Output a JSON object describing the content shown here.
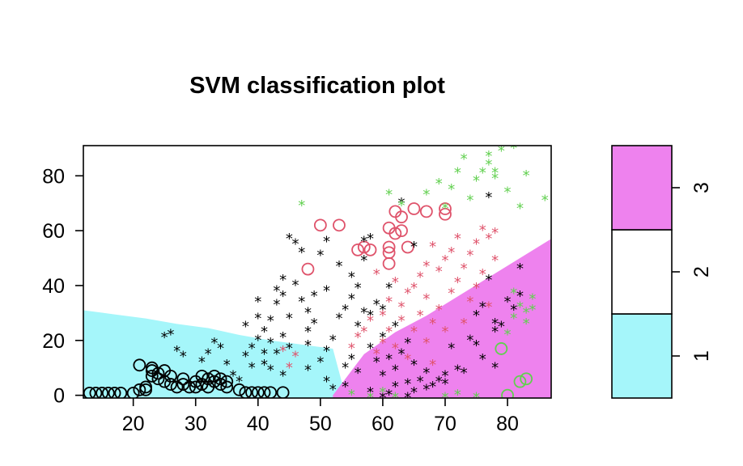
{
  "chart_data": {
    "type": "scatter",
    "title": "SVM classification plot",
    "xlabel": "",
    "ylabel": "",
    "xlim": [
      12,
      87
    ],
    "ylim": [
      -1,
      91
    ],
    "x_ticks": [
      20,
      30,
      40,
      50,
      60,
      70,
      80
    ],
    "y_ticks": [
      0,
      20,
      40,
      60,
      80
    ],
    "grid": false,
    "legend": {
      "type": "colorbar",
      "placement": "right",
      "levels": [
        {
          "label": "1",
          "color": "#a5f6fa"
        },
        {
          "label": "2",
          "color": "#ffffff"
        },
        {
          "label": "3",
          "color": "#ee82ee"
        }
      ]
    },
    "regions": {
      "class1_upper_boundary": {
        "x": [
          12,
          17,
          22,
          27,
          32,
          37,
          42,
          47,
          52,
          54
        ],
        "y": [
          31,
          29.5,
          28,
          26,
          24.5,
          22,
          20,
          18.5,
          17,
          0
        ]
      },
      "class3_lower_boundary": {
        "x": [
          52,
          57,
          62,
          67,
          72,
          77,
          82,
          87
        ],
        "y": [
          0,
          15,
          23,
          29,
          36,
          43,
          50,
          57
        ]
      }
    },
    "series": [
      {
        "marker": "circle",
        "color": "#000000",
        "points": [
          [
            13,
            0.8
          ],
          [
            14,
            0.8
          ],
          [
            15,
            0.8
          ],
          [
            16,
            0.8
          ],
          [
            17,
            0.8
          ],
          [
            18,
            0.8
          ],
          [
            20,
            0.8
          ],
          [
            21,
            2
          ],
          [
            21,
            11
          ],
          [
            22,
            3
          ],
          [
            22,
            2
          ],
          [
            23,
            9
          ],
          [
            23,
            10
          ],
          [
            23,
            7
          ],
          [
            24,
            6
          ],
          [
            24,
            8
          ],
          [
            25,
            5
          ],
          [
            25,
            9
          ],
          [
            26,
            4
          ],
          [
            26,
            7
          ],
          [
            27,
            3
          ],
          [
            28,
            4
          ],
          [
            28,
            6
          ],
          [
            29,
            3
          ],
          [
            30,
            3
          ],
          [
            30,
            5
          ],
          [
            31,
            7
          ],
          [
            31,
            4
          ],
          [
            32,
            3
          ],
          [
            32,
            6
          ],
          [
            33,
            5
          ],
          [
            33,
            7
          ],
          [
            34,
            6
          ],
          [
            34,
            4
          ],
          [
            35,
            3
          ],
          [
            35,
            5
          ],
          [
            37,
            2
          ],
          [
            38,
            1
          ],
          [
            39,
            1
          ],
          [
            40,
            1
          ],
          [
            41,
            1
          ],
          [
            42,
            1
          ],
          [
            44,
            1
          ]
        ]
      },
      {
        "marker": "circle",
        "color": "#df536b",
        "points": [
          [
            48,
            46
          ],
          [
            50,
            62
          ],
          [
            53,
            62
          ],
          [
            56,
            53
          ],
          [
            57,
            54
          ],
          [
            58,
            53
          ],
          [
            61,
            61
          ],
          [
            61,
            54
          ],
          [
            61,
            52
          ],
          [
            61,
            48
          ],
          [
            62,
            67
          ],
          [
            62,
            59
          ],
          [
            63,
            65
          ],
          [
            63,
            60
          ],
          [
            64,
            54
          ],
          [
            65,
            68
          ],
          [
            67,
            67
          ],
          [
            70,
            66
          ],
          [
            70,
            68
          ]
        ]
      },
      {
        "marker": "circle",
        "color": "#61d04f",
        "points": [
          [
            79,
            17
          ],
          [
            80,
            0
          ],
          [
            82,
            5
          ],
          [
            83,
            6
          ]
        ]
      },
      {
        "marker": "star",
        "color": "#000000",
        "points": [
          [
            25,
            22
          ],
          [
            26,
            23
          ],
          [
            27,
            17
          ],
          [
            28,
            15
          ],
          [
            31,
            13
          ],
          [
            32,
            16
          ],
          [
            33,
            20
          ],
          [
            34,
            18
          ],
          [
            35,
            12
          ],
          [
            36,
            8
          ],
          [
            37,
            6
          ],
          [
            38,
            15
          ],
          [
            38,
            26
          ],
          [
            39,
            11
          ],
          [
            39,
            18
          ],
          [
            40,
            21
          ],
          [
            40,
            29
          ],
          [
            40,
            35
          ],
          [
            41,
            12
          ],
          [
            41,
            16
          ],
          [
            41,
            24
          ],
          [
            42,
            10
          ],
          [
            42,
            20
          ],
          [
            42,
            28
          ],
          [
            43,
            16
          ],
          [
            43,
            34
          ],
          [
            43,
            39
          ],
          [
            44,
            8
          ],
          [
            44,
            22
          ],
          [
            44,
            37
          ],
          [
            44,
            43
          ],
          [
            45,
            18
          ],
          [
            45,
            29
          ],
          [
            45,
            58
          ],
          [
            46,
            41
          ],
          [
            46,
            56
          ],
          [
            47,
            35
          ],
          [
            47,
            53
          ],
          [
            48,
            10
          ],
          [
            48,
            19
          ],
          [
            48,
            24
          ],
          [
            48,
            31
          ],
          [
            49,
            27
          ],
          [
            49,
            37
          ],
          [
            50,
            13
          ],
          [
            50,
            52
          ],
          [
            51,
            17
          ],
          [
            51,
            39
          ],
          [
            51,
            57
          ],
          [
            51,
            6
          ],
          [
            52,
            3
          ],
          [
            52,
            21
          ],
          [
            53,
            29
          ],
          [
            53,
            48
          ],
          [
            54,
            4
          ],
          [
            54,
            11
          ],
          [
            54,
            32
          ],
          [
            55,
            14
          ],
          [
            55,
            36
          ],
          [
            55,
            44
          ],
          [
            56,
            9
          ],
          [
            56,
            40
          ],
          [
            56,
            26
          ],
          [
            57,
            31
          ],
          [
            57,
            50
          ],
          [
            57,
            57
          ],
          [
            58,
            2
          ],
          [
            58,
            18
          ],
          [
            58,
            30
          ],
          [
            58,
            58
          ],
          [
            59,
            34
          ],
          [
            59,
            13
          ],
          [
            60,
            0
          ],
          [
            60,
            8
          ],
          [
            60,
            22
          ],
          [
            60,
            32
          ],
          [
            61,
            1
          ],
          [
            61,
            14
          ],
          [
            61,
            40
          ],
          [
            62,
            4
          ],
          [
            62,
            10
          ],
          [
            62,
            26
          ],
          [
            63,
            71
          ],
          [
            63,
            16
          ],
          [
            64,
            0
          ],
          [
            64,
            5
          ],
          [
            64,
            20
          ],
          [
            65,
            2
          ],
          [
            65,
            55
          ],
          [
            65,
            12
          ],
          [
            66,
            6
          ],
          [
            67,
            3
          ],
          [
            67,
            9
          ],
          [
            68,
            4
          ],
          [
            69,
            6
          ],
          [
            70,
            5
          ],
          [
            70,
            8
          ],
          [
            71,
            18
          ],
          [
            72,
            10
          ],
          [
            73,
            9
          ],
          [
            74,
            21
          ],
          [
            75,
            19
          ],
          [
            75,
            30
          ],
          [
            76,
            14
          ],
          [
            76,
            33
          ],
          [
            77,
            43
          ],
          [
            77,
            73
          ],
          [
            78,
            11
          ],
          [
            78,
            27
          ],
          [
            78,
            24
          ],
          [
            79,
            26
          ],
          [
            80,
            35
          ],
          [
            81,
            32
          ],
          [
            82,
            47
          ],
          [
            82,
            37
          ]
        ]
      },
      {
        "marker": "star",
        "color": "#df536b",
        "points": [
          [
            44,
            17
          ],
          [
            45,
            11
          ],
          [
            46,
            15
          ],
          [
            55,
            18
          ],
          [
            56,
            22
          ],
          [
            57,
            24
          ],
          [
            58,
            28
          ],
          [
            59,
            16
          ],
          [
            59,
            45
          ],
          [
            60,
            20
          ],
          [
            60,
            30
          ],
          [
            61,
            24
          ],
          [
            61,
            35
          ],
          [
            62,
            18
          ],
          [
            62,
            42
          ],
          [
            63,
            28
          ],
          [
            63,
            33
          ],
          [
            64,
            14
          ],
          [
            64,
            38
          ],
          [
            65,
            24
          ],
          [
            65,
            40
          ],
          [
            66,
            30
          ],
          [
            66,
            44
          ],
          [
            67,
            20
          ],
          [
            67,
            36
          ],
          [
            67,
            48
          ],
          [
            68,
            12
          ],
          [
            68,
            27
          ],
          [
            68,
            55
          ],
          [
            69,
            32
          ],
          [
            69,
            46
          ],
          [
            70,
            50
          ],
          [
            70,
            24
          ],
          [
            71,
            38
          ],
          [
            71,
            53
          ],
          [
            72,
            42
          ],
          [
            72,
            58
          ],
          [
            73,
            27
          ],
          [
            73,
            47
          ],
          [
            74,
            35
          ],
          [
            74,
            52
          ],
          [
            75,
            40
          ],
          [
            75,
            56
          ],
          [
            76,
            45
          ],
          [
            76,
            61
          ],
          [
            77,
            33
          ],
          [
            77,
            58
          ],
          [
            78,
            50
          ],
          [
            78,
            60
          ]
        ]
      },
      {
        "marker": "star",
        "color": "#61d04f",
        "points": [
          [
            47,
            70
          ],
          [
            61,
            74
          ],
          [
            63,
            70
          ],
          [
            67,
            74
          ],
          [
            69,
            78
          ],
          [
            70,
            69
          ],
          [
            71,
            76
          ],
          [
            72,
            82
          ],
          [
            73,
            87
          ],
          [
            74,
            72
          ],
          [
            75,
            79
          ],
          [
            76,
            82
          ],
          [
            77,
            85
          ],
          [
            77,
            88
          ],
          [
            78,
            82
          ],
          [
            78,
            80
          ],
          [
            79,
            90
          ],
          [
            80,
            75
          ],
          [
            81,
            91
          ],
          [
            82,
            69
          ],
          [
            83,
            81
          ],
          [
            86,
            72
          ],
          [
            80,
            23
          ],
          [
            81,
            29
          ],
          [
            81,
            38
          ],
          [
            82,
            33
          ],
          [
            83,
            31
          ],
          [
            84,
            32
          ],
          [
            84,
            36
          ],
          [
            83,
            27
          ],
          [
            70,
            0
          ],
          [
            72,
            1
          ],
          [
            75,
            0
          ],
          [
            55,
            1
          ],
          [
            58,
            0
          ],
          [
            60,
            2
          ],
          [
            62,
            0
          ]
        ]
      }
    ]
  }
}
